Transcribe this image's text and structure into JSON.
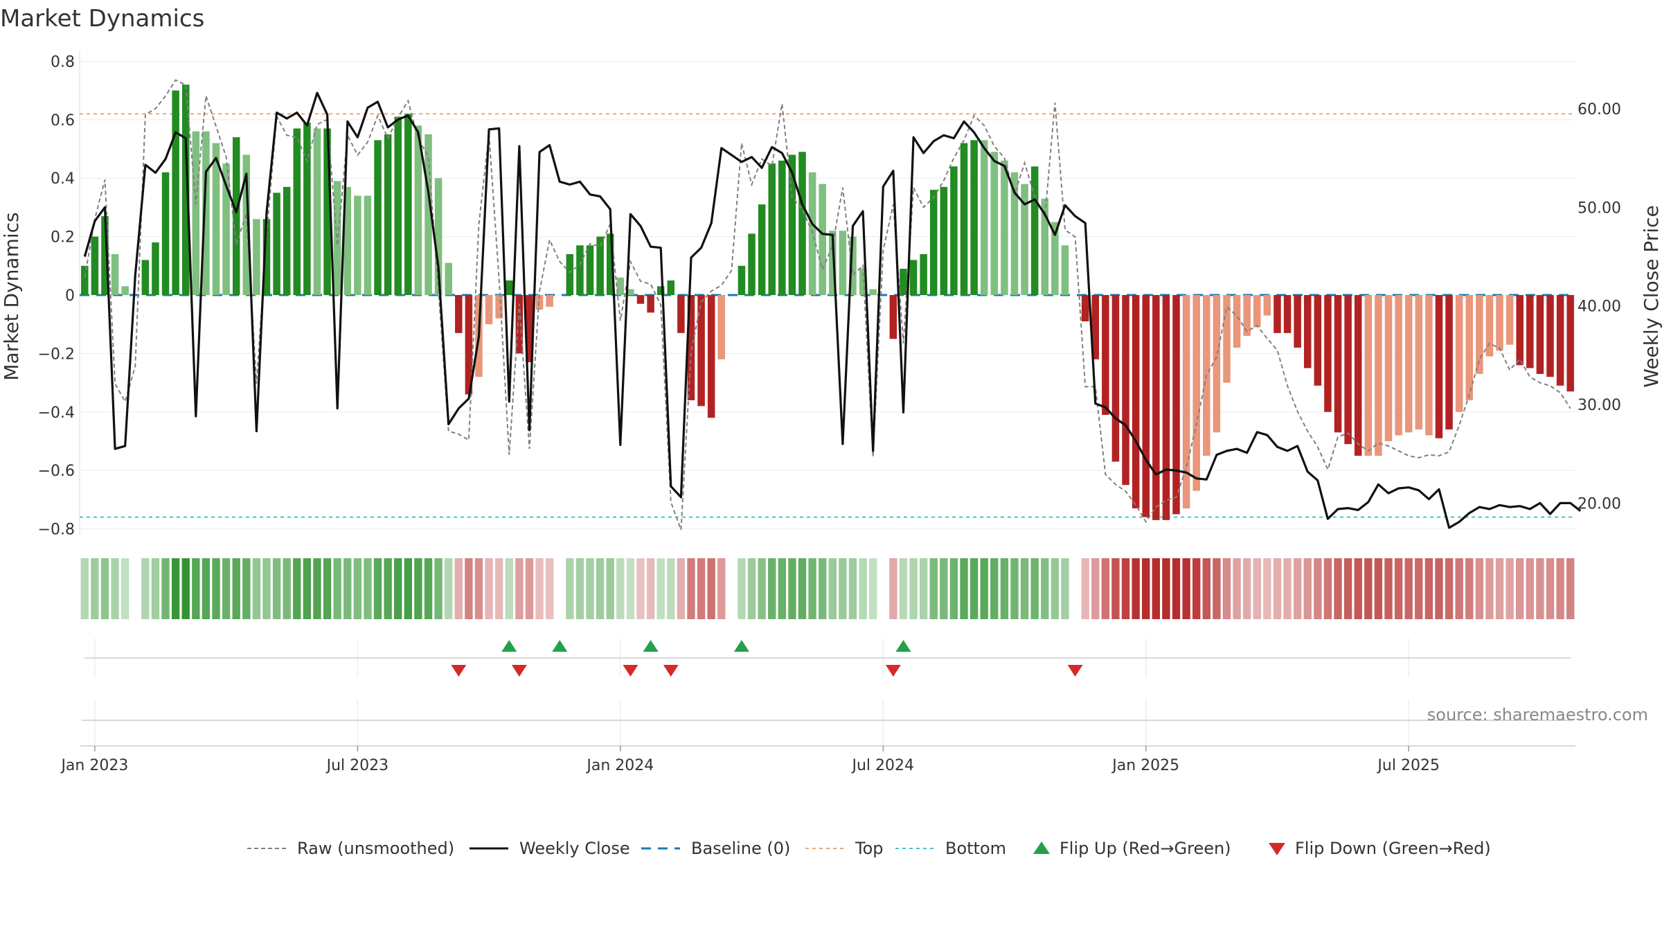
{
  "chart_data": {
    "type": "bar",
    "title": "Market Dynamics",
    "ylabel": "Market Dynamics",
    "y2label": "Weekly Close Price",
    "source": "source: sharemaestro.com",
    "ylim": [
      -0.82,
      0.82
    ],
    "y2lim": [
      16.8,
      65.4
    ],
    "y_ticks": [
      0.8,
      0.6,
      0.4,
      0.2,
      0,
      -0.2,
      -0.4,
      -0.6,
      -0.8
    ],
    "y_tick_labels": [
      "0.8",
      "0.6",
      "0.4",
      "0.2",
      "0",
      "−0.2",
      "−0.4",
      "−0.6",
      "−0.8"
    ],
    "y2_ticks": [
      60,
      50,
      40,
      30,
      20
    ],
    "y2_tick_labels": [
      "60.00",
      "50.00",
      "40.00",
      "30.00",
      "20.00"
    ],
    "x_ticks": [
      {
        "label": "Jan 2023",
        "week": 1
      },
      {
        "label": "Jul 2023",
        "week": 27
      },
      {
        "label": "Jan 2024",
        "week": 53
      },
      {
        "label": "Jul 2024",
        "week": 79
      },
      {
        "label": "Jan 2025",
        "week": 105
      },
      {
        "label": "Jul 2025",
        "week": 131
      }
    ],
    "reference_lines": {
      "top": 0.62,
      "bottom": -0.76,
      "baseline": 0
    },
    "colors": {
      "strong_green": "#228B22",
      "light_green": "#7FBF7F",
      "strong_red": "#B22222",
      "light_red": "#E9967A",
      "raw": "#808080",
      "close": "#111111",
      "baseline": "#1f77b4",
      "top": "#e8a87c",
      "bottom": "#40c4d0",
      "flip_up": "#22a04b",
      "flip_down": "#d42a2a"
    },
    "dynamics": [
      0.1,
      0.2,
      0.27,
      0.14,
      0.03,
      0,
      0.12,
      0.18,
      0.42,
      0.7,
      0.72,
      0.56,
      0.56,
      0.52,
      0.45,
      0.54,
      0.48,
      0.26,
      0.26,
      0.35,
      0.37,
      0.57,
      0.59,
      0.57,
      0.57,
      0.39,
      0.37,
      0.34,
      0.34,
      0.53,
      0.55,
      0.61,
      0.62,
      0.58,
      0.55,
      0.4,
      0.11,
      -0.13,
      -0.34,
      -0.28,
      -0.1,
      -0.08,
      0.05,
      -0.2,
      -0.23,
      -0.05,
      -0.04,
      0,
      0.14,
      0.17,
      0.17,
      0.2,
      0.21,
      0.06,
      0.02,
      -0.03,
      -0.06,
      0.03,
      0.05,
      -0.13,
      -0.36,
      -0.38,
      -0.42,
      -0.22,
      0,
      0.1,
      0.21,
      0.31,
      0.45,
      0.46,
      0.48,
      0.49,
      0.42,
      0.38,
      0.22,
      0.22,
      0.2,
      0.09,
      0.02,
      0,
      -0.15,
      0.09,
      0.12,
      0.14,
      0.36,
      0.37,
      0.44,
      0.52,
      0.53,
      0.53,
      0.49,
      0.46,
      0.42,
      0.38,
      0.44,
      0.33,
      0.25,
      0.17,
      0,
      -0.09,
      -0.22,
      -0.41,
      -0.57,
      -0.65,
      -0.73,
      -0.76,
      -0.77,
      -0.77,
      -0.75,
      -0.73,
      -0.67,
      -0.55,
      -0.47,
      -0.3,
      -0.18,
      -0.14,
      -0.11,
      -0.07,
      -0.13,
      -0.13,
      -0.18,
      -0.25,
      -0.31,
      -0.4,
      -0.47,
      -0.51,
      -0.55,
      -0.55,
      -0.55,
      -0.5,
      -0.48,
      -0.47,
      -0.46,
      -0.48,
      -0.49,
      -0.46,
      -0.4,
      -0.36,
      -0.27,
      -0.21,
      -0.19,
      -0.17,
      -0.24,
      -0.25,
      -0.27,
      -0.28,
      -0.31,
      -0.33
    ],
    "strength": [
      1,
      1,
      1,
      0,
      0,
      0,
      1,
      1,
      1,
      1,
      1,
      0,
      0,
      0,
      0,
      1,
      0,
      0,
      1,
      1,
      1,
      1,
      1,
      0,
      1,
      0,
      0,
      0,
      0,
      1,
      1,
      1,
      1,
      0,
      0,
      0,
      0,
      1,
      1,
      0,
      0,
      0,
      1,
      1,
      1,
      0,
      0,
      0,
      1,
      1,
      1,
      1,
      1,
      0,
      0,
      1,
      1,
      1,
      1,
      1,
      1,
      1,
      1,
      0,
      0,
      1,
      1,
      1,
      1,
      1,
      1,
      1,
      0,
      0,
      0,
      0,
      0,
      0,
      0,
      0,
      1,
      1,
      1,
      1,
      1,
      1,
      1,
      1,
      1,
      0,
      0,
      0,
      0,
      0,
      1,
      0,
      0,
      0,
      0,
      1,
      1,
      1,
      1,
      1,
      1,
      1,
      1,
      1,
      1,
      0,
      0,
      0,
      0,
      0,
      0,
      0,
      0,
      0,
      1,
      1,
      1,
      1,
      1,
      1,
      1,
      1,
      1,
      0,
      0,
      0,
      0,
      0,
      0,
      0,
      1,
      1,
      0,
      0,
      0,
      0,
      0,
      0,
      1,
      1,
      1,
      1,
      1,
      1,
      1
    ],
    "weekly_close": [
      45.0,
      48.6,
      50.0,
      25.5,
      25.8,
      43.1,
      54.3,
      53.5,
      54.9,
      57.6,
      57.0,
      28.8,
      53.6,
      55.0,
      52.2,
      49.5,
      53.4,
      27.3,
      49.5,
      59.6,
      59.0,
      59.6,
      58.3,
      61.6,
      59.4,
      29.6,
      58.7,
      57.1,
      60.1,
      60.7,
      58.1,
      58.9,
      59.3,
      57.6,
      51.6,
      43.9,
      28.0,
      29.6,
      30.6,
      36.9,
      57.9,
      58.0,
      30.3,
      56.2,
      27.4,
      55.6,
      56.3,
      52.6,
      52.3,
      52.6,
      51.3,
      51.1,
      49.8,
      25.9,
      49.3,
      48.1,
      46.0,
      45.9,
      21.7,
      20.6,
      44.9,
      45.9,
      48.4,
      56.0,
      55.3,
      54.6,
      55.1,
      54.0,
      56.1,
      55.5,
      53.5,
      50.3,
      48.3,
      47.3,
      47.2,
      26.0,
      48.1,
      49.6,
      25.3,
      52.1,
      53.7,
      29.2,
      57.1,
      55.5,
      56.7,
      57.3,
      57.0,
      58.7,
      57.6,
      56.0,
      54.7,
      54.2,
      51.5,
      50.3,
      50.8,
      49.3,
      47.2,
      50.2,
      49.1,
      48.4,
      30.1,
      29.7,
      28.6,
      27.9,
      26.3,
      24.4,
      22.9,
      23.4,
      23.3,
      23.1,
      22.5,
      22.4,
      24.9,
      25.3,
      25.5,
      25.1,
      27.2,
      26.9,
      25.7,
      25.3,
      25.8,
      23.2,
      22.3,
      18.4,
      19.4,
      19.5,
      19.3,
      20.1,
      21.9,
      21.0,
      21.5,
      21.6,
      21.3,
      20.4,
      21.4,
      17.5,
      18.1,
      19.0,
      19.6,
      19.4,
      19.8,
      19.6,
      19.7,
      19.4,
      20.0,
      18.9,
      20.0,
      20.0,
      19.2
    ],
    "raw": [
      42.9,
      48.8,
      52.8,
      32.1,
      30.3,
      33.9,
      59.4,
      60.0,
      61.3,
      62.9,
      62.4,
      50.3,
      61.3,
      58.2,
      55.1,
      46.2,
      49.4,
      32.1,
      47.3,
      59.2,
      57.3,
      57.1,
      54.7,
      58.4,
      58.9,
      46.1,
      57.3,
      55.3,
      56.6,
      59.3,
      57.0,
      59.1,
      60.8,
      56.9,
      55.2,
      41.7,
      27.3,
      27.0,
      26.4,
      48.3,
      57.4,
      42.7,
      24.9,
      40.2,
      25.5,
      41.5,
      46.7,
      44.5,
      43.4,
      44.2,
      46.3,
      46.0,
      48.3,
      38.5,
      44.5,
      42.5,
      42.2,
      40.1,
      20.1,
      17.3,
      35.4,
      40.4,
      41.5,
      42.1,
      43.6,
      56.5,
      52.3,
      54.9,
      54.2,
      60.5,
      51.0,
      49.8,
      47.5,
      43.7,
      46.1,
      52.0,
      43.1,
      44.1,
      24.7,
      45.6,
      50.3,
      36.2,
      52.0,
      50.0,
      51.0,
      52.7,
      55.0,
      56.8,
      59.3,
      58.3,
      56.2,
      55.0,
      51.3,
      54.5,
      51.1,
      49.0,
      60.6,
      47.7,
      47.0,
      31.8,
      31.8,
      22.9,
      21.9,
      21.2,
      19.8,
      18.1,
      19.6,
      20.3,
      20.6,
      23.6,
      28.0,
      33.0,
      34.8,
      39.9,
      39.0,
      37.4,
      38.0,
      36.7,
      35.5,
      31.9,
      29.3,
      27.3,
      25.7,
      23.4,
      26.7,
      27.1,
      26.0,
      25.3,
      26.1,
      25.8,
      25.3,
      24.8,
      24.6,
      24.9,
      24.8,
      25.2,
      27.9,
      31.0,
      34.6,
      36.2,
      35.7,
      33.5,
      34.6,
      32.8,
      32.2,
      31.9,
      31.2,
      29.6
    ],
    "flips_up": [
      42,
      47,
      56,
      65,
      81
    ],
    "flips_down": [
      37,
      43,
      54,
      58,
      80,
      98
    ],
    "legend": [
      {
        "label": "Raw (unsmoothed)",
        "kind": "line-dashed-gray"
      },
      {
        "label": "Weekly Close",
        "kind": "line-solid-black"
      },
      {
        "label": "Baseline (0)",
        "kind": "line-dashed-blue"
      },
      {
        "label": "Top",
        "kind": "line-dotted-orange"
      },
      {
        "label": "Bottom",
        "kind": "line-dotted-cyan"
      },
      {
        "label": "Flip Up (Red→Green)",
        "kind": "triangle-up"
      },
      {
        "label": "Flip Down (Green→Red)",
        "kind": "triangle-down"
      }
    ]
  }
}
